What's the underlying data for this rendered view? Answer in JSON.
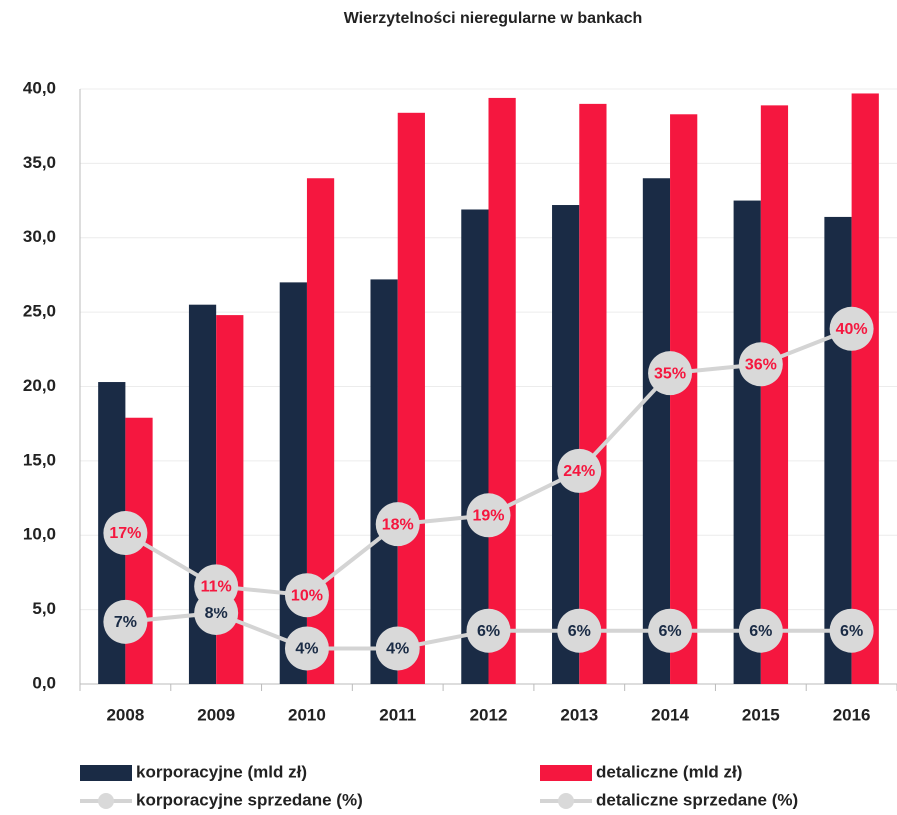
{
  "chart_data": {
    "type": "bar",
    "title": "Wierzytelności nieregularne w bankach",
    "categories": [
      "2008",
      "2009",
      "2010",
      "2011",
      "2012",
      "2013",
      "2014",
      "2015",
      "2016"
    ],
    "series": [
      {
        "name": "korporacyjne (mld zł)",
        "type": "bar",
        "color": "#1a2b45",
        "values": [
          20.3,
          25.5,
          27.0,
          27.2,
          31.9,
          32.2,
          34.0,
          32.5,
          31.4
        ]
      },
      {
        "name": "detaliczne (mld zł)",
        "type": "bar",
        "color": "#f5173f",
        "values": [
          17.9,
          24.8,
          34.0,
          38.4,
          39.4,
          39.0,
          38.3,
          38.9,
          39.7
        ]
      },
      {
        "name": "korporacyjne sprzedane (%)",
        "type": "line",
        "axis": "y2",
        "color": "#d4d4d4",
        "label_color": "#1a2b45",
        "values": [
          7,
          8,
          4,
          4,
          6,
          6,
          6,
          6,
          6
        ],
        "value_labels": [
          "7%",
          "8%",
          "4%",
          "4%",
          "6%",
          "6%",
          "6%",
          "6%",
          "6%"
        ]
      },
      {
        "name": "detaliczne sprzedane (%)",
        "type": "line",
        "axis": "y2",
        "color": "#d4d4d4",
        "label_color": "#f5173f",
        "values": [
          17,
          11,
          10,
          18,
          19,
          24,
          35,
          36,
          40
        ],
        "value_labels": [
          "17%",
          "11%",
          "10%",
          "18%",
          "19%",
          "24%",
          "35%",
          "36%",
          "40%"
        ]
      }
    ],
    "ylim": [
      0,
      40
    ],
    "yticks": [
      {
        "value": 0,
        "label": "0,0"
      },
      {
        "value": 5,
        "label": "5,0"
      },
      {
        "value": 10,
        "label": "10,0"
      },
      {
        "value": 15,
        "label": "15,0"
      },
      {
        "value": 20,
        "label": "20,0"
      },
      {
        "value": 25,
        "label": "25,0"
      },
      {
        "value": 30,
        "label": "30,0"
      },
      {
        "value": 35,
        "label": "35,0"
      },
      {
        "value": 40,
        "label": "40,0"
      }
    ],
    "y2lim": [
      0,
      67
    ],
    "grid": true
  }
}
